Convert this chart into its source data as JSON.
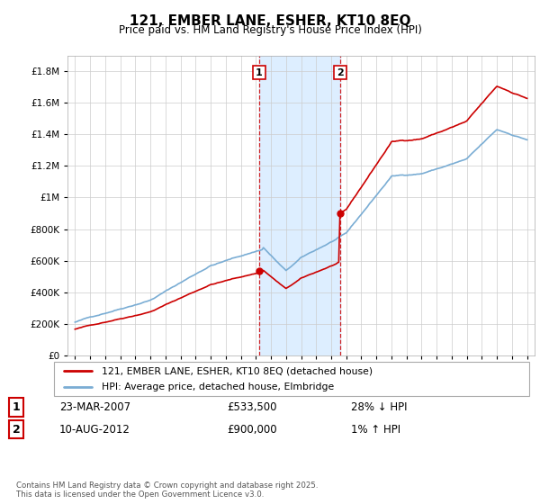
{
  "title": "121, EMBER LANE, ESHER, KT10 8EQ",
  "subtitle": "Price paid vs. HM Land Registry's House Price Index (HPI)",
  "legend_line1": "121, EMBER LANE, ESHER, KT10 8EQ (detached house)",
  "legend_line2": "HPI: Average price, detached house, Elmbridge",
  "transaction1_date": "23-MAR-2007",
  "transaction1_price": "£533,500",
  "transaction1_hpi": "28% ↓ HPI",
  "transaction2_date": "10-AUG-2012",
  "transaction2_price": "£900,000",
  "transaction2_hpi": "1% ↑ HPI",
  "footer": "Contains HM Land Registry data © Crown copyright and database right 2025.\nThis data is licensed under the Open Government Licence v3.0.",
  "line_color_red": "#cc0000",
  "line_color_blue": "#7aadd4",
  "shade_color": "#ddeeff",
  "marker1_x": 2007.22,
  "marker2_x": 2012.6,
  "sale1_price": 533500,
  "sale2_price": 900000,
  "ylim_min": 0,
  "ylim_max": 1900000,
  "xlim_min": 1994.5,
  "xlim_max": 2025.5
}
